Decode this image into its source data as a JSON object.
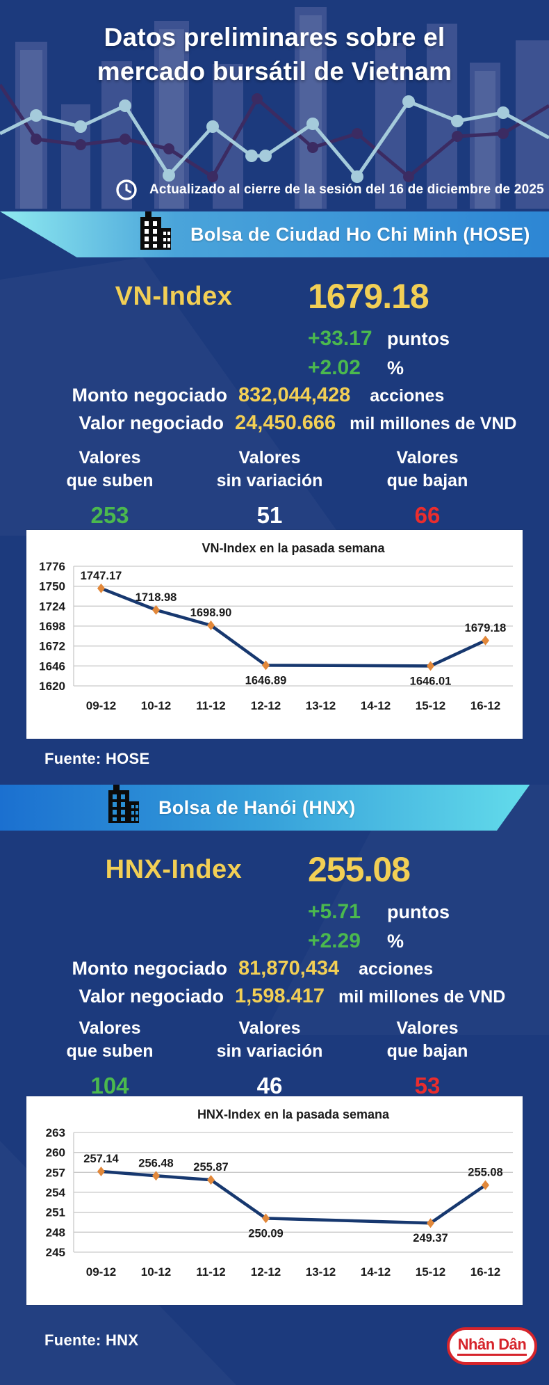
{
  "page": {
    "bg": "#1c3a7d",
    "accent_yellow": "#f2cf55",
    "accent_green": "#4bb94e",
    "accent_red": "#eb2d2d"
  },
  "header": {
    "title_line1": "Datos preliminares sobre el",
    "title_line2": "mercado bursátil de Vietnam",
    "updated": "Actualizado al cierre de la sesión del 16 de diciembre de 2025"
  },
  "hose": {
    "banner": "Bolsa de Ciudad Ho Chi Minh (HOSE)",
    "index_label": "VN-Index",
    "index_value": "1679.18",
    "change_points": "+33.17",
    "points_unit": "puntos",
    "change_pct": "+2.02",
    "pct_unit": "%",
    "volume_label": "Monto negociado",
    "volume_value": "832,044,428",
    "volume_unit": "acciones",
    "turnover_label": "Valor negociado",
    "turnover_value": "24,450.666",
    "turnover_unit": "mil millones de VND",
    "advancers_label1": "Valores",
    "advancers_label2": "que suben",
    "advancers": "253",
    "unchanged_label1": "Valores",
    "unchanged_label2": "sin variación",
    "unchanged": "51",
    "decliners_label1": "Valores",
    "decliners_label2": "que bajan",
    "decliners": "66",
    "source": "Fuente: HOSE"
  },
  "hnx": {
    "banner": "Bolsa de Hanói (HNX)",
    "index_label": "HNX-Index",
    "index_value": "255.08",
    "change_points": "+5.71",
    "points_unit": "puntos",
    "change_pct": "+2.29",
    "pct_unit": "%",
    "volume_label": "Monto negociado",
    "volume_value": "81,870,434",
    "volume_unit": "acciones",
    "turnover_label": "Valor negociado",
    "turnover_value": "1,598.417",
    "turnover_unit": "mil millones de VND",
    "advancers_label1": "Valores",
    "advancers_label2": "que suben",
    "advancers": "104",
    "unchanged_label1": "Valores",
    "unchanged_label2": "sin variación",
    "unchanged": "46",
    "decliners_label1": "Valores",
    "decliners_label2": "que bajan",
    "decliners": "53",
    "source": "Fuente:  HNX"
  },
  "footer": {
    "logo_text": "Nhân Dân"
  },
  "chart_data": [
    {
      "type": "line",
      "title": "VN-Index en la pasada semana",
      "categories": [
        "09-12",
        "10-12",
        "11-12",
        "12-12",
        "13-12",
        "14-12",
        "15-12",
        "16-12"
      ],
      "points": [
        {
          "category": "09-12",
          "value": 1747.17,
          "label": "1747.17",
          "label_pos": "above"
        },
        {
          "category": "10-12",
          "value": 1718.98,
          "label": "1718.98",
          "label_pos": "above"
        },
        {
          "category": "11-12",
          "value": 1698.9,
          "label": "1698.90",
          "label_pos": "above"
        },
        {
          "category": "12-12",
          "value": 1646.89,
          "label": "1646.89",
          "label_pos": "below"
        },
        {
          "category": "15-12",
          "value": 1646.01,
          "label": "1646.01",
          "label_pos": "below"
        },
        {
          "category": "16-12",
          "value": 1679.18,
          "label": "1679.18",
          "label_pos": "above"
        }
      ],
      "yticks": [
        1776,
        1750,
        1724,
        1698,
        1672,
        1646,
        1620
      ],
      "ylim": [
        1620,
        1776
      ],
      "grid": true,
      "legend": "none",
      "line_color": "#17386f",
      "marker_color": "#e2883a"
    },
    {
      "type": "line",
      "title": "HNX-Index en la pasada semana",
      "categories": [
        "09-12",
        "10-12",
        "11-12",
        "12-12",
        "13-12",
        "14-12",
        "15-12",
        "16-12"
      ],
      "points": [
        {
          "category": "09-12",
          "value": 257.14,
          "label": "257.14",
          "label_pos": "above"
        },
        {
          "category": "10-12",
          "value": 256.48,
          "label": "256.48",
          "label_pos": "above"
        },
        {
          "category": "11-12",
          "value": 255.87,
          "label": "255.87",
          "label_pos": "above"
        },
        {
          "category": "12-12",
          "value": 250.09,
          "label": "250.09",
          "label_pos": "below"
        },
        {
          "category": "15-12",
          "value": 249.37,
          "label": "249.37",
          "label_pos": "below"
        },
        {
          "category": "16-12",
          "value": 255.08,
          "label": "255.08",
          "label_pos": "above"
        }
      ],
      "yticks": [
        263,
        260,
        257,
        254,
        251,
        248,
        245
      ],
      "ylim": [
        245,
        263
      ],
      "grid": true,
      "legend": "none",
      "line_color": "#17386f",
      "marker_color": "#e2883a"
    }
  ]
}
